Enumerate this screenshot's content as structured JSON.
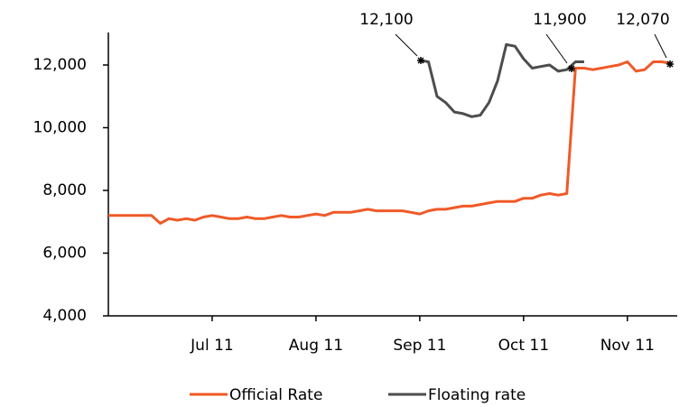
{
  "chart_data": {
    "type": "line",
    "categories": [
      null,
      null,
      null,
      null,
      null,
      null,
      null,
      null,
      null,
      null,
      null,
      null,
      "Jul 11",
      null,
      null,
      null,
      null,
      null,
      null,
      null,
      null,
      null,
      null,
      null,
      "Aug 11",
      null,
      null,
      null,
      null,
      null,
      null,
      null,
      null,
      null,
      null,
      null,
      "Sep 11",
      null,
      null,
      null,
      null,
      null,
      null,
      null,
      null,
      null,
      null,
      null,
      "Oct 11",
      null,
      null,
      null,
      null,
      null,
      null,
      null,
      null,
      null,
      null,
      null,
      "Nov 11",
      null,
      null,
      null,
      null,
      null
    ],
    "series": [
      {
        "name": "Official Rate",
        "color": "#f05a28",
        "values": [
          7200,
          7200,
          7200,
          7200,
          7200,
          7200,
          6950,
          7100,
          7050,
          7100,
          7050,
          7150,
          7200,
          7150,
          7100,
          7100,
          7150,
          7100,
          7100,
          7150,
          7200,
          7150,
          7150,
          7200,
          7250,
          7200,
          7300,
          7300,
          7300,
          7350,
          7400,
          7350,
          7350,
          7350,
          7350,
          7300,
          7250,
          7350,
          7400,
          7400,
          7450,
          7500,
          7500,
          7550,
          7600,
          7650,
          7650,
          7650,
          7750,
          7750,
          7850,
          7900,
          7850,
          7900,
          11900,
          11900,
          11850,
          11900,
          11950,
          12000,
          12100,
          11800,
          11850,
          12100,
          12100,
          12050
        ]
      },
      {
        "name": "Floating rate",
        "color": "#4d4d4d",
        "values": [
          null,
          null,
          null,
          null,
          null,
          null,
          null,
          null,
          null,
          null,
          null,
          null,
          null,
          null,
          null,
          null,
          null,
          null,
          null,
          null,
          null,
          null,
          null,
          null,
          null,
          null,
          null,
          null,
          null,
          null,
          null,
          null,
          null,
          null,
          null,
          null,
          12150,
          12100,
          11000,
          10800,
          10500,
          10450,
          10350,
          10400,
          10800,
          11500,
          12650,
          12600,
          12200,
          11900,
          11950,
          12000,
          11800,
          11850,
          12100,
          12100,
          null,
          null,
          null,
          null,
          null,
          null,
          null,
          null,
          null,
          null
        ]
      }
    ],
    "annotations": [
      "12,100",
      "11,900",
      "12,070"
    ],
    "ylim": [
      4000,
      12000
    ],
    "yticks": [
      {
        "value": 4000,
        "label": "4,000"
      },
      {
        "value": 6000,
        "label": "6,000"
      },
      {
        "value": 8000,
        "label": "8,000"
      },
      {
        "value": 10000,
        "label": "10,000"
      },
      {
        "value": 12000,
        "label": "12,000"
      }
    ],
    "grid": false,
    "legend": "bottom"
  }
}
